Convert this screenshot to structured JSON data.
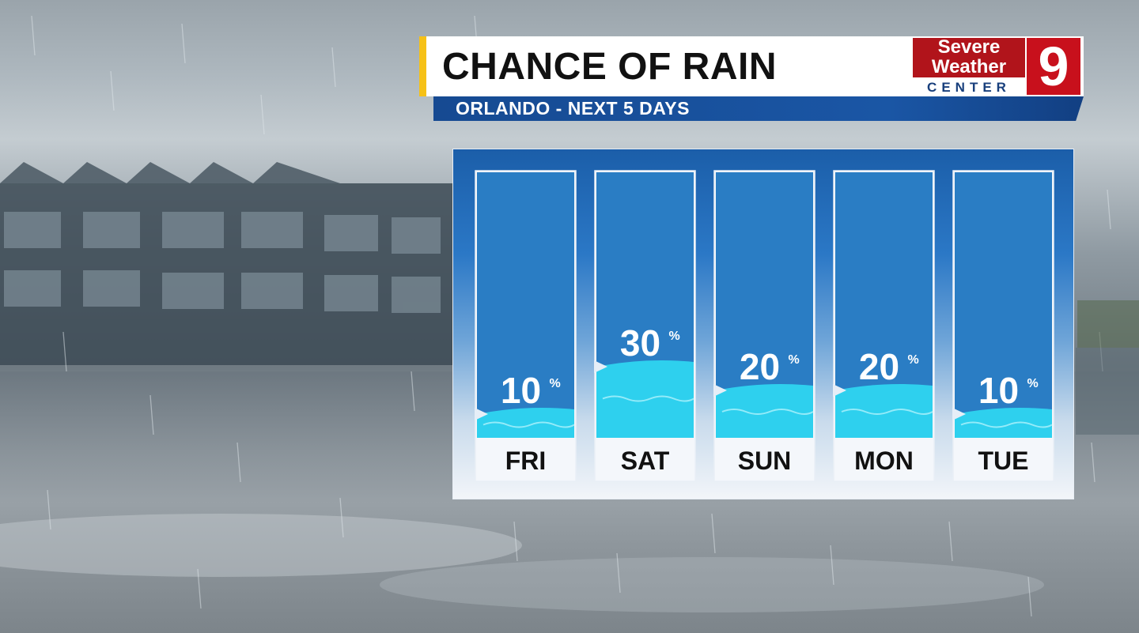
{
  "header": {
    "title": "CHANCE OF RAIN",
    "subtitle": "ORLANDO - NEXT 5 DAYS"
  },
  "logo": {
    "line1": "Severe",
    "line2": "Weather",
    "line3": "CENTER",
    "channel": "9",
    "colors": {
      "red": "#b1141b",
      "blue": "#183f7c"
    }
  },
  "chart_data": {
    "type": "bar",
    "categories": [
      "FRI",
      "SAT",
      "SUN",
      "MON",
      "TUE"
    ],
    "values": [
      10,
      30,
      20,
      20,
      10
    ],
    "unit": "%",
    "ylim": [
      0,
      100
    ],
    "title": "CHANCE OF RAIN",
    "subtitle": "ORLANDO - NEXT 5 DAYS",
    "xlabel": "",
    "ylabel": "",
    "grid": false,
    "colors": {
      "empty": "#2a7dc4",
      "fill": "#2ed0ee",
      "panel": "#1b5ea9"
    }
  }
}
